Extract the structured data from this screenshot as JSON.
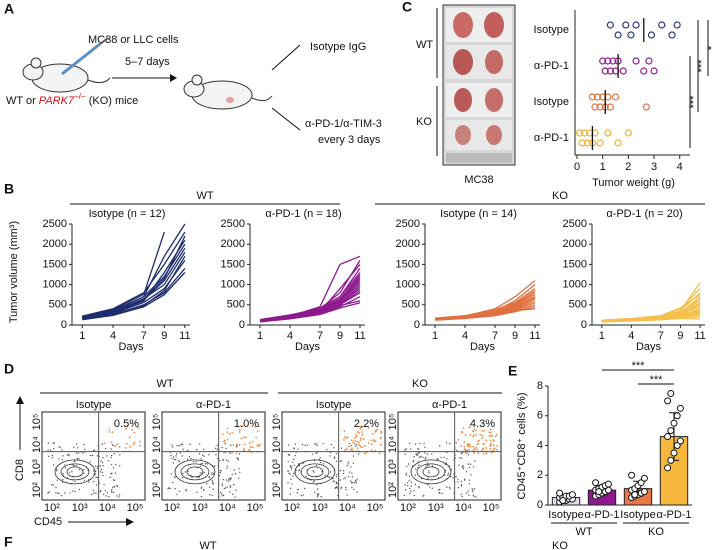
{
  "panel_labels": [
    "A",
    "B",
    "C",
    "D",
    "E",
    "F"
  ],
  "schematic": {
    "cells": "MC38 or LLC cells",
    "days": "5–7 days",
    "mice_prefix": "WT or ",
    "gene": "PARK7",
    "gene_sup": "−/−",
    "mice_suffix": " (KO) mice",
    "arm1": "Isotype IgG",
    "arm2_line1": "α-PD-1/α-TIM-3",
    "arm2_line2": "every 3 days"
  },
  "photo": {
    "genotypes": [
      "WT",
      "KO"
    ],
    "caption": "MC38"
  },
  "line_groups": [
    "WT",
    "KO"
  ],
  "flow": {
    "groups": [
      "WT",
      "KO"
    ],
    "panels": [
      {
        "title": "Isotype",
        "pct": "0.5%"
      },
      {
        "title": "α-PD-1",
        "pct": "1.0%"
      },
      {
        "title": "Isotype",
        "pct": "2.2%"
      },
      {
        "title": "α-PD-1",
        "pct": "4.3%"
      }
    ],
    "ticks": [
      "10²",
      "10³",
      "10⁴",
      "10⁵"
    ],
    "ylabel": "CD8",
    "xlabel": "CD45"
  },
  "footer": [
    "WT",
    "KO"
  ],
  "chart_data": [
    {
      "type": "strip",
      "categories": [
        "Isotype",
        "α-PD-1",
        "Isotype",
        "α-PD-1"
      ],
      "colors": [
        "#2a3580",
        "#8e1a8e",
        "#e07040",
        "#f0b030"
      ],
      "values": [
        [
          1.3,
          1.6,
          1.9,
          2.1,
          2.3,
          2.9,
          3.3,
          3.7,
          3.9
        ],
        [
          1.0,
          1.1,
          1.2,
          1.3,
          1.4,
          1.5,
          1.6,
          1.8,
          2.3,
          2.6,
          2.8,
          3.0
        ],
        [
          0.6,
          0.7,
          0.8,
          0.9,
          1.0,
          1.1,
          1.2,
          1.3,
          1.5,
          2.7
        ],
        [
          0.1,
          0.2,
          0.3,
          0.4,
          0.5,
          0.6,
          0.7,
          0.9,
          1.2,
          1.6,
          2.0
        ]
      ],
      "means": [
        2.6,
        1.6,
        1.1,
        0.6
      ],
      "xlim": [
        0,
        4.4
      ],
      "xticks": [
        0,
        1,
        2,
        3,
        4
      ],
      "xlabel": "Tumor weight (g)",
      "annotations": [
        "***",
        "***",
        "*"
      ]
    },
    {
      "type": "line",
      "title": "Isotype (n = 12)",
      "ylabel": "Tumor volume (mm³)",
      "xlabel": "Days",
      "color": "#1f2d6e",
      "x": [
        1,
        4,
        7,
        9,
        11
      ],
      "xlim": [
        0,
        11.5
      ],
      "xticks": [
        1,
        4,
        7,
        9,
        11
      ],
      "ylim": [
        0,
        2500
      ],
      "yticks": [
        0,
        500,
        1000,
        1500,
        2000,
        2500
      ],
      "series": [
        {
          "values": [
            150,
            300,
            600,
            1300,
            2100
          ]
        },
        {
          "values": [
            200,
            350,
            700,
            1700,
            2500
          ]
        },
        {
          "values": [
            180,
            320,
            650,
            1000,
            1800
          ]
        },
        {
          "values": [
            160,
            280,
            560,
            900,
            1600
          ]
        },
        {
          "values": [
            220,
            400,
            800,
            1500,
            2300
          ]
        },
        {
          "values": [
            140,
            250,
            500,
            800,
            1400
          ]
        },
        {
          "values": [
            170,
            330,
            620,
            1100,
            1900
          ]
        },
        {
          "values": [
            190,
            360,
            700,
            1200,
            2000
          ]
        },
        {
          "values": [
            150,
            270,
            480,
            850,
            1700
          ]
        },
        {
          "values": [
            210,
            380,
            760,
            2300,
            null
          ]
        },
        {
          "values": [
            130,
            240,
            450,
            750,
            1300
          ]
        },
        {
          "values": [
            200,
            340,
            640,
            1150,
            2200
          ]
        }
      ]
    },
    {
      "type": "line",
      "title": "α-PD-1 (n = 18)",
      "xlabel": "Days",
      "color": "#8e1a8e",
      "x": [
        1,
        4,
        7,
        9,
        11
      ],
      "xlim": [
        0,
        11.5
      ],
      "xticks": [
        1,
        4,
        7,
        9,
        11
      ],
      "ylim": [
        0,
        2500
      ],
      "yticks": [
        0,
        500,
        1000,
        1500,
        2000,
        2500
      ],
      "series": [
        {
          "values": [
            100,
            200,
            400,
            800,
            1600
          ]
        },
        {
          "values": [
            120,
            220,
            450,
            1500,
            1700
          ]
        },
        {
          "values": [
            90,
            180,
            350,
            600,
            1200
          ]
        },
        {
          "values": [
            110,
            210,
            420,
            700,
            1400
          ]
        },
        {
          "values": [
            130,
            240,
            380,
            650,
            1100
          ]
        },
        {
          "values": [
            100,
            190,
            330,
            550,
            900
          ]
        },
        {
          "values": [
            80,
            170,
            300,
            500,
            800
          ]
        },
        {
          "values": [
            120,
            230,
            360,
            600,
            1000
          ]
        },
        {
          "values": [
            90,
            160,
            280,
            450,
            700
          ]
        },
        {
          "values": [
            110,
            200,
            340,
            560,
            950
          ]
        },
        {
          "values": [
            100,
            180,
            320,
            520,
            850
          ]
        },
        {
          "values": [
            130,
            250,
            400,
            700,
            1300
          ]
        },
        {
          "values": [
            90,
            170,
            290,
            480,
            600
          ]
        },
        {
          "values": [
            120,
            220,
            380,
            620,
            1050
          ]
        },
        {
          "values": [
            100,
            200,
            350,
            580,
            1150
          ]
        },
        {
          "values": [
            80,
            150,
            260,
            420,
            550
          ]
        },
        {
          "values": [
            110,
            190,
            330,
            900,
            1500
          ]
        },
        {
          "values": [
            100,
            210,
            370,
            640,
            1250
          ]
        }
      ]
    },
    {
      "type": "line",
      "title": "Isotype (n = 14)",
      "xlabel": "Days",
      "color": "#e07040",
      "x": [
        1,
        4,
        7,
        9,
        11
      ],
      "xlim": [
        0,
        11.5
      ],
      "xticks": [
        1,
        4,
        7,
        9,
        11
      ],
      "ylim": [
        0,
        2500
      ],
      "yticks": [
        0,
        500,
        1000,
        1500,
        2000,
        2500
      ],
      "series": [
        {
          "values": [
            150,
            200,
            350,
            600,
            1000
          ]
        },
        {
          "values": [
            160,
            220,
            400,
            700,
            1100
          ]
        },
        {
          "values": [
            140,
            190,
            300,
            500,
            800
          ]
        },
        {
          "values": [
            170,
            230,
            380,
            550,
            900
          ]
        },
        {
          "values": [
            130,
            180,
            280,
            420,
            650
          ]
        },
        {
          "values": [
            150,
            210,
            320,
            480,
            750
          ]
        },
        {
          "values": [
            140,
            170,
            250,
            380,
            550
          ]
        },
        {
          "values": [
            160,
            200,
            300,
            450,
            700
          ]
        },
        {
          "values": [
            120,
            160,
            230,
            330,
            450
          ]
        },
        {
          "values": [
            150,
            190,
            270,
            400,
            600
          ]
        },
        {
          "values": [
            130,
            170,
            240,
            350,
            500
          ]
        },
        {
          "values": [
            140,
            180,
            260,
            360,
            400
          ]
        },
        {
          "values": [
            160,
            220,
            340,
            520,
            850
          ]
        },
        {
          "values": [
            150,
            200,
            290,
            430,
            680
          ]
        }
      ]
    },
    {
      "type": "line",
      "title": "α-PD-1 (n = 20)",
      "xlabel": "Days",
      "color": "#f5c04a",
      "x": [
        1,
        4,
        7,
        9,
        11
      ],
      "xlim": [
        0,
        11.5
      ],
      "xticks": [
        1,
        4,
        7,
        9,
        11
      ],
      "ylim": [
        0,
        2500
      ],
      "yticks": [
        0,
        500,
        1000,
        1500,
        2000,
        2500
      ],
      "series": [
        {
          "values": [
            100,
            130,
            200,
            350,
            1050
          ]
        },
        {
          "values": [
            110,
            140,
            220,
            400,
            900
          ]
        },
        {
          "values": [
            90,
            120,
            180,
            300,
            700
          ]
        },
        {
          "values": [
            100,
            130,
            170,
            250,
            500
          ]
        },
        {
          "values": [
            120,
            150,
            210,
            320,
            600
          ]
        },
        {
          "values": [
            80,
            110,
            150,
            220,
            400
          ]
        },
        {
          "values": [
            100,
            120,
            160,
            230,
            350
          ]
        },
        {
          "values": [
            90,
            130,
            190,
            280,
            550
          ]
        },
        {
          "values": [
            110,
            140,
            200,
            350,
            800
          ]
        },
        {
          "values": [
            100,
            120,
            150,
            200,
            300
          ]
        },
        {
          "values": [
            80,
            100,
            130,
            180,
            250
          ]
        },
        {
          "values": [
            90,
            110,
            140,
            190,
            200
          ]
        },
        {
          "values": [
            100,
            130,
            180,
            260,
            450
          ]
        },
        {
          "values": [
            110,
            150,
            220,
            300,
            650
          ]
        },
        {
          "values": [
            90,
            120,
            160,
            210,
            280
          ]
        },
        {
          "values": [
            100,
            110,
            130,
            160,
            150
          ]
        },
        {
          "values": [
            80,
            120,
            170,
            240,
            380
          ]
        },
        {
          "values": [
            120,
            160,
            230,
            420,
            750
          ]
        },
        {
          "values": [
            90,
            110,
            150,
            200,
            330
          ]
        },
        {
          "values": [
            100,
            140,
            190,
            290,
            520
          ]
        }
      ]
    },
    {
      "type": "bar",
      "categories": [
        "Isotype",
        "α-PD-1",
        "Isotype",
        "α-PD-1"
      ],
      "groups": [
        "WT",
        "KO"
      ],
      "colors": [
        "#e6dcef",
        "#8e1a8e",
        "#e87848",
        "#f5b83c"
      ],
      "values": [
        0.5,
        1.0,
        1.1,
        4.6
      ],
      "errors": [
        0.2,
        0.3,
        0.5,
        1.6
      ],
      "points": [
        [
          0.2,
          0.3,
          0.3,
          0.4,
          0.4,
          0.5,
          0.5,
          0.6,
          0.6,
          0.7,
          0.8,
          0.3
        ],
        [
          0.6,
          0.7,
          0.8,
          0.9,
          1.0,
          1.0,
          1.1,
          1.2,
          1.3,
          1.4,
          1.5,
          0.9
        ],
        [
          0.5,
          0.6,
          0.7,
          0.8,
          0.9,
          1.0,
          1.1,
          1.3,
          1.5,
          1.8,
          2.0,
          0.7
        ],
        [
          2.5,
          3.0,
          3.5,
          4.0,
          4.3,
          4.6,
          5.0,
          5.5,
          6.0,
          6.5,
          7.0,
          7.5
        ]
      ],
      "ylim": [
        0,
        8
      ],
      "yticks": [
        0,
        2,
        4,
        6,
        8
      ],
      "ylabel": "CD45⁺CD8⁺ cells (%)",
      "annotations": [
        "***",
        "***"
      ]
    }
  ]
}
